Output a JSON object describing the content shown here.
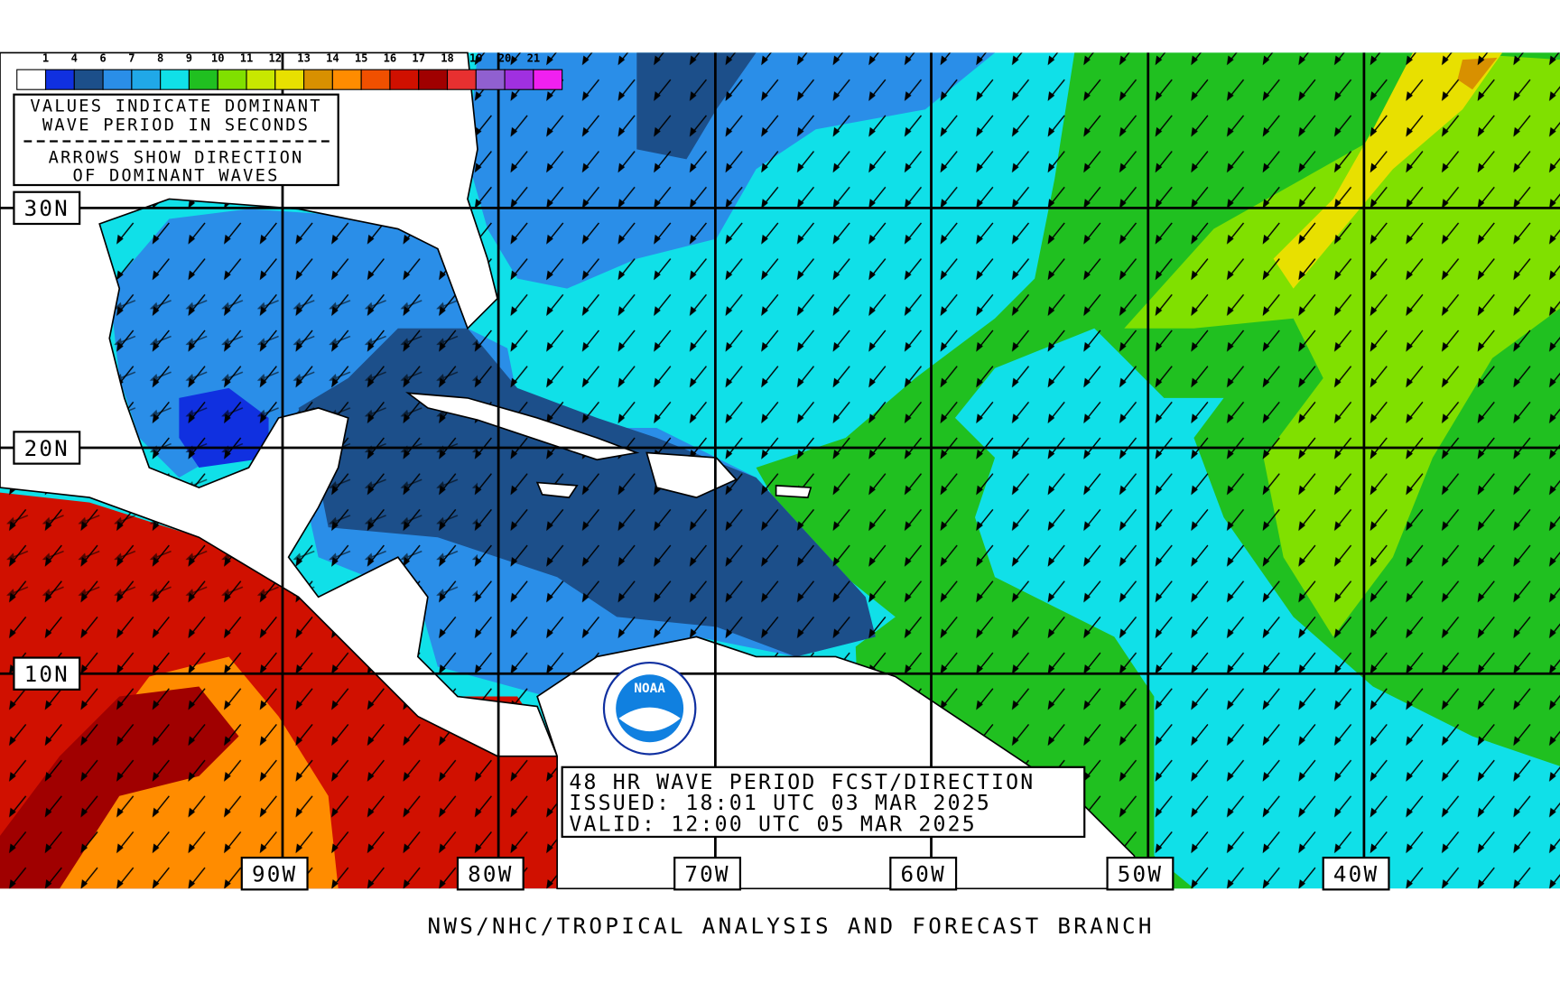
{
  "legend": {
    "labels": [
      "1",
      "4",
      "6",
      "7",
      "8",
      "9",
      "10",
      "11",
      "12",
      "13",
      "14",
      "15",
      "16",
      "17",
      "18",
      "19",
      "20",
      "21"
    ],
    "colors": [
      "#ffffff",
      "#1030e0",
      "#1c4f8a",
      "#2a8ee8",
      "#20a8e8",
      "#10e0e8",
      "#20c020",
      "#80e000",
      "#c8e800",
      "#e8e000",
      "#d89000",
      "#ff8c00",
      "#f05000",
      "#d01000",
      "#a00000",
      "#e83030",
      "#9060d0",
      "#a030e0",
      "#f020f0"
    ]
  },
  "info_box": [
    "VALUES INDICATE DOMINANT",
    "WAVE PERIOD IN SECONDS",
    "ARROWS SHOW DIRECTION",
    "OF DOMINANT WAVES"
  ],
  "latitude_labels": [
    "30N",
    "20N",
    "10N"
  ],
  "longitude_labels": [
    "90W",
    "80W",
    "70W",
    "60W",
    "50W",
    "40W"
  ],
  "forecast_box": [
    "48 HR WAVE PERIOD FCST/DIRECTION",
    "ISSUED:  18:01 UTC 03 MAR 2025",
    "VALID:   12:00 UTC 05 MAR 2025"
  ],
  "logo": "NOAA",
  "footer": "NWS/NHC/TROPICAL ANALYSIS AND FORECAST BRANCH"
}
